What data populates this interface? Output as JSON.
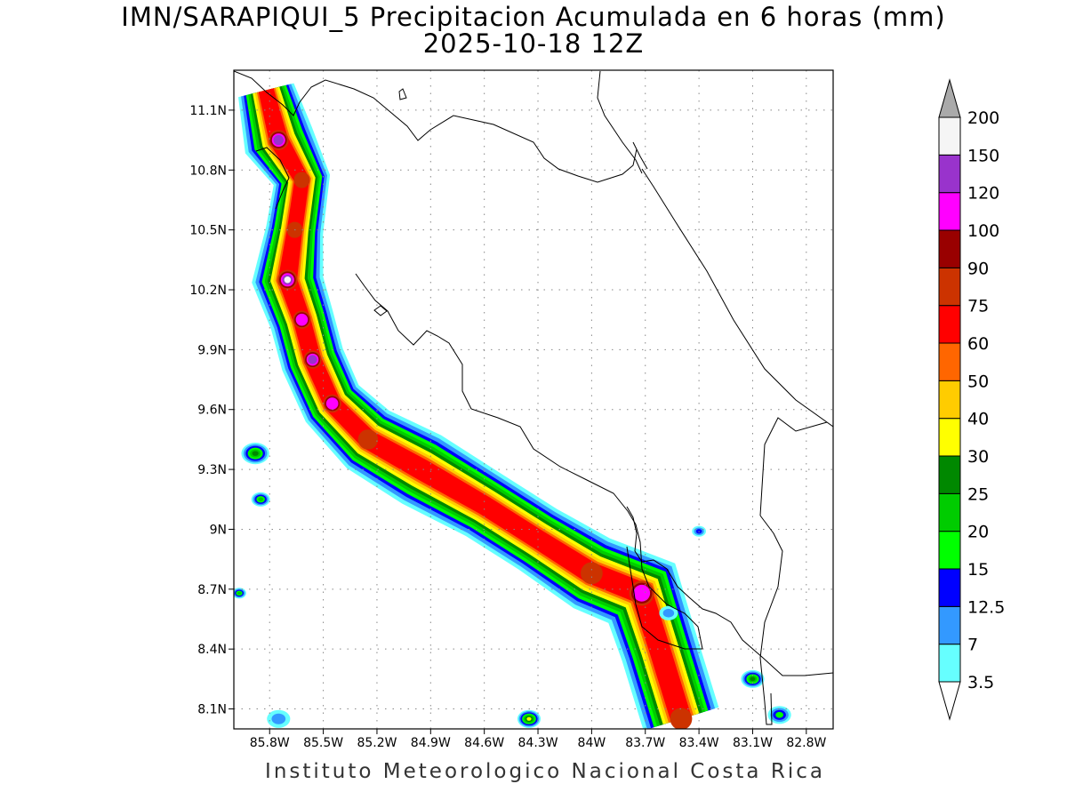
{
  "header": {
    "title_line1": "IMN/SARAPIQUI_5 Precipitacion Acumulada en 6 horas (mm)",
    "title_line2": "2025-10-18 12Z"
  },
  "footer": {
    "credit": "Instituto Meteorologico Nacional Costa Rica"
  },
  "map": {
    "lon_range": [
      -86.0,
      -82.65
    ],
    "lat_range": [
      8.0,
      11.3
    ],
    "lon_ticks": [
      {
        "value": -85.8,
        "label": "85.8W"
      },
      {
        "value": -85.5,
        "label": "85.5W"
      },
      {
        "value": -85.2,
        "label": "85.2W"
      },
      {
        "value": -84.9,
        "label": "84.9W"
      },
      {
        "value": -84.6,
        "label": "84.6W"
      },
      {
        "value": -84.3,
        "label": "84.3W"
      },
      {
        "value": -84.0,
        "label": "84W"
      },
      {
        "value": -83.7,
        "label": "83.7W"
      },
      {
        "value": -83.4,
        "label": "83.4W"
      },
      {
        "value": -83.1,
        "label": "83.1W"
      },
      {
        "value": -82.8,
        "label": "82.8W"
      }
    ],
    "lat_ticks": [
      {
        "value": 11.1,
        "label": "11.1N"
      },
      {
        "value": 10.8,
        "label": "10.8N"
      },
      {
        "value": 10.5,
        "label": "10.5N"
      },
      {
        "value": 10.2,
        "label": "10.2N"
      },
      {
        "value": 9.9,
        "label": "9.9N"
      },
      {
        "value": 9.6,
        "label": "9.6N"
      },
      {
        "value": 9.3,
        "label": "9.3N"
      },
      {
        "value": 9.0,
        "label": "9N"
      },
      {
        "value": 8.7,
        "label": "8.7N"
      },
      {
        "value": 8.4,
        "label": "8.4N"
      },
      {
        "value": 8.1,
        "label": "8.1N"
      }
    ],
    "grid": "dotted"
  },
  "colorbar": {
    "levels": [
      {
        "label": "3.5",
        "color": "#66ffff"
      },
      {
        "label": "7",
        "color": "#3399ff"
      },
      {
        "label": "12.5",
        "color": "#0000ff"
      },
      {
        "label": "15",
        "color": "#00ff00"
      },
      {
        "label": "20",
        "color": "#00cc00"
      },
      {
        "label": "25",
        "color": "#008800"
      },
      {
        "label": "30",
        "color": "#ffff00"
      },
      {
        "label": "40",
        "color": "#ffcc00"
      },
      {
        "label": "50",
        "color": "#ff6600"
      },
      {
        "label": "60",
        "color": "#ff0000"
      },
      {
        "label": "75",
        "color": "#cc3300"
      },
      {
        "label": "90",
        "color": "#990000"
      },
      {
        "label": "100",
        "color": "#ff00ff"
      },
      {
        "label": "120",
        "color": "#9933cc"
      },
      {
        "label": "150",
        "color": "#f5f5f5"
      },
      {
        "label": "200",
        "color": "#aaaaaa"
      }
    ],
    "under_color": "#ffffff",
    "over_color": "#aaaaaa"
  },
  "precip_band": [
    {
      "lon": -85.82,
      "lat": 11.2,
      "w": 0.16,
      "level": 9
    },
    {
      "lon": -85.75,
      "lat": 10.95,
      "w": 0.2,
      "level": 13
    },
    {
      "lon": -85.62,
      "lat": 10.75,
      "w": 0.16,
      "level": 10
    },
    {
      "lon": -85.66,
      "lat": 10.5,
      "w": 0.16,
      "level": 10
    },
    {
      "lon": -85.7,
      "lat": 10.25,
      "w": 0.2,
      "level": 14
    },
    {
      "lon": -85.62,
      "lat": 10.05,
      "w": 0.18,
      "level": 12
    },
    {
      "lon": -85.56,
      "lat": 9.85,
      "w": 0.18,
      "level": 13
    },
    {
      "lon": -85.45,
      "lat": 9.63,
      "w": 0.18,
      "level": 12
    },
    {
      "lon": -85.25,
      "lat": 9.45,
      "w": 0.2,
      "level": 10
    },
    {
      "lon": -84.95,
      "lat": 9.3,
      "w": 0.22,
      "level": 8
    },
    {
      "lon": -84.6,
      "lat": 9.12,
      "w": 0.2,
      "level": 7
    },
    {
      "lon": -84.3,
      "lat": 8.95,
      "w": 0.2,
      "level": 9
    },
    {
      "lon": -84.0,
      "lat": 8.78,
      "w": 0.22,
      "level": 10
    },
    {
      "lon": -83.72,
      "lat": 8.68,
      "w": 0.25,
      "level": 12
    },
    {
      "lon": -83.62,
      "lat": 8.4,
      "w": 0.22,
      "level": 6
    },
    {
      "lon": -83.5,
      "lat": 8.05,
      "w": 0.22,
      "level": 10
    }
  ],
  "cells": [
    {
      "lon": -85.88,
      "lat": 9.38,
      "r": 0.06,
      "level": 5
    },
    {
      "lon": -85.85,
      "lat": 9.15,
      "r": 0.04,
      "level": 4
    },
    {
      "lon": -85.97,
      "lat": 8.68,
      "r": 0.03,
      "level": 4
    },
    {
      "lon": -85.75,
      "lat": 8.05,
      "r": 0.05,
      "level": 1
    },
    {
      "lon": -84.35,
      "lat": 8.05,
      "r": 0.05,
      "level": 6
    },
    {
      "lon": -83.1,
      "lat": 8.25,
      "r": 0.05,
      "level": 5
    },
    {
      "lon": -82.95,
      "lat": 8.07,
      "r": 0.05,
      "level": 3
    },
    {
      "lon": -83.4,
      "lat": 8.99,
      "r": 0.03,
      "level": 2
    },
    {
      "lon": -83.57,
      "lat": 8.58,
      "r": 0.04,
      "level": 1
    }
  ]
}
